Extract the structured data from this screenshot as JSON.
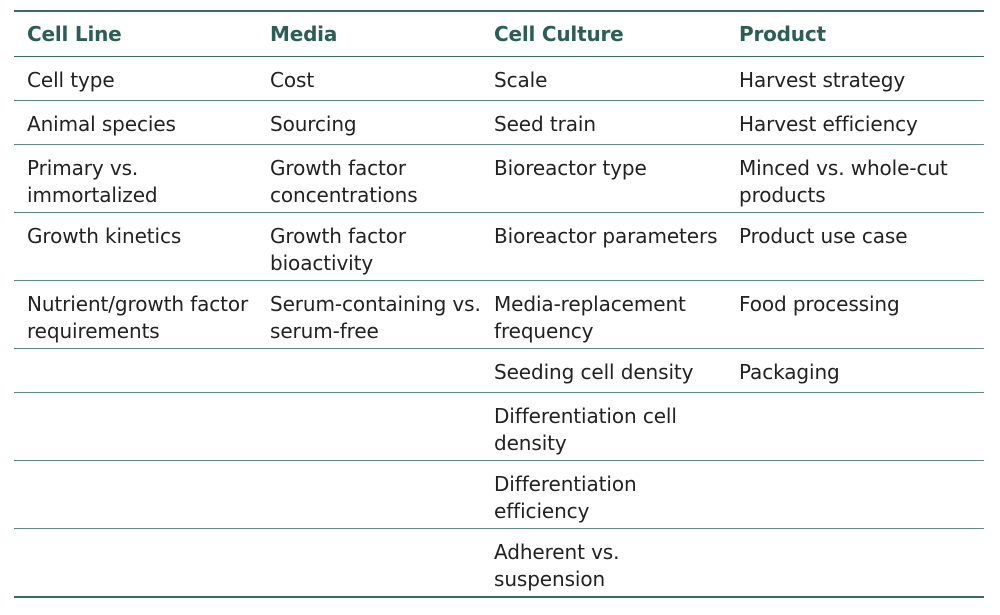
{
  "table": {
    "headers": [
      "Cell Line",
      "Media",
      "Cell Culture",
      "Product"
    ],
    "rows": [
      [
        "Cell type",
        "Cost",
        "Scale",
        "Harvest strategy"
      ],
      [
        "Animal species",
        "Sourcing",
        "Seed train",
        "Harvest efficiency"
      ],
      [
        "Primary vs. immortalized",
        "Growth factor concentrations",
        "Bioreactor type",
        "Minced vs. whole-cut products"
      ],
      [
        "Growth kinetics",
        "Growth factor bioactivity",
        "Bioreactor parameters",
        "Product use case"
      ],
      [
        "Nutrient/growth factor requirements",
        "Serum-containing vs. serum-free",
        "Media-replacement frequency",
        "Food processing"
      ],
      [
        "",
        "",
        "Seeding cell density",
        "Packaging"
      ],
      [
        "",
        "",
        "Differentiation cell density",
        ""
      ],
      [
        "",
        "",
        "Differentiation efficiency",
        ""
      ],
      [
        "",
        "",
        "Adherent vs. suspension",
        ""
      ]
    ]
  }
}
